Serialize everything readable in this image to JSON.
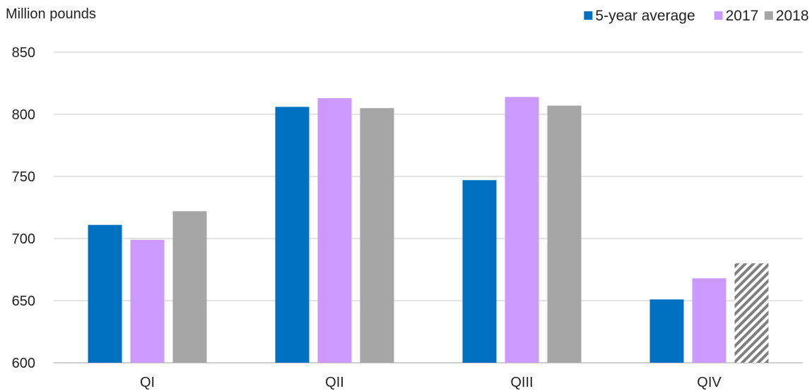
{
  "chart_data": {
    "type": "bar",
    "ylabel": "Million pounds",
    "categories": [
      "QI",
      "QII",
      "QIII",
      "QIV"
    ],
    "ylim": [
      600,
      850
    ],
    "yticks": [
      600,
      650,
      700,
      750,
      800,
      850
    ],
    "grid": true,
    "legend_position": "top-right",
    "series": [
      {
        "name": "5-year average",
        "color": "#0070c0",
        "values": [
          711,
          806,
          747,
          651
        ]
      },
      {
        "name": "2017",
        "color": "#cc99ff",
        "values": [
          699,
          813,
          814,
          668
        ]
      },
      {
        "name": "2018",
        "color": "#a6a6a6",
        "values": [
          722,
          805,
          807,
          680
        ],
        "forecast_last": true
      }
    ]
  }
}
